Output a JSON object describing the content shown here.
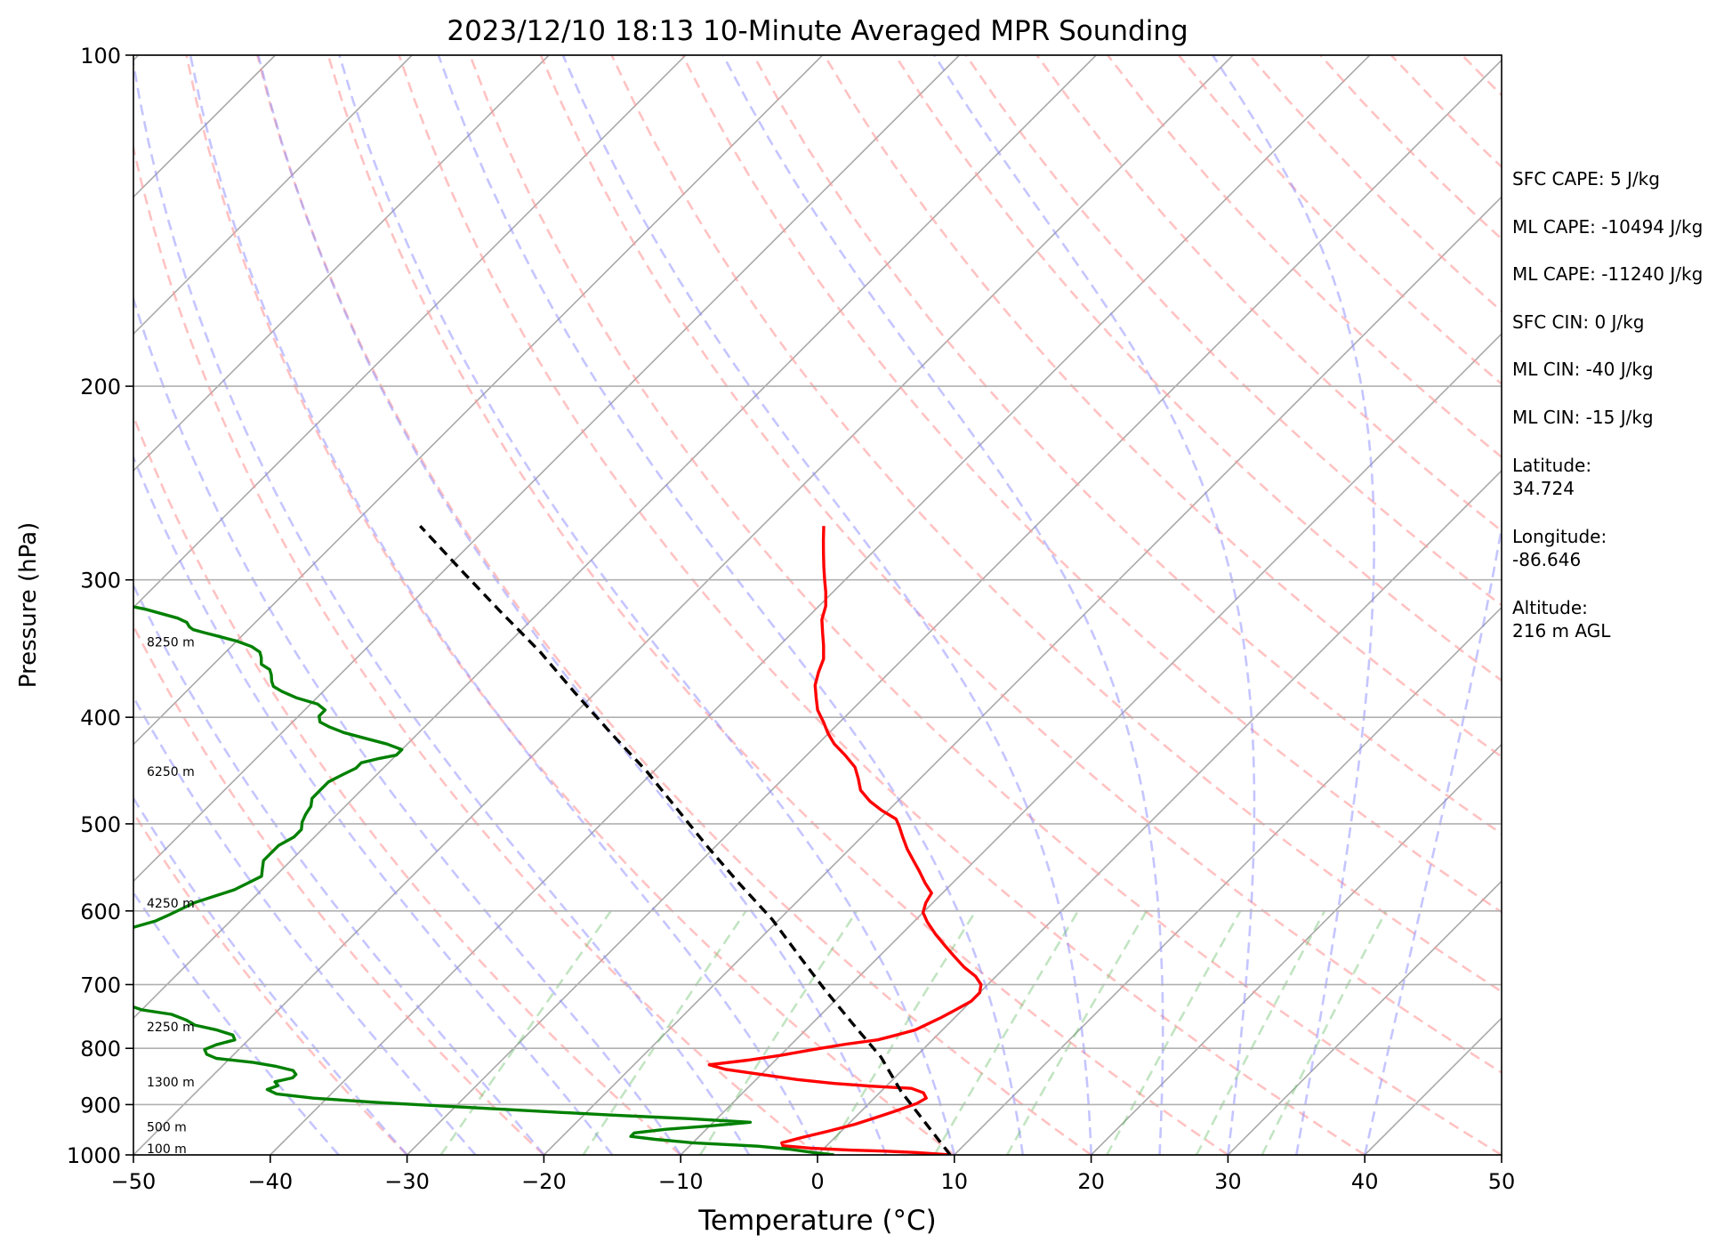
{
  "chart_data": {
    "type": "skew-t",
    "title": "2023/12/10 18:13 10-Minute Averaged MPR Sounding",
    "xlabel": "Temperature (°C)",
    "ylabel": "Pressure (hPa)",
    "xlim": [
      -50,
      50
    ],
    "ylim": [
      1000,
      100
    ],
    "y_scale": "log",
    "x_ticks": [
      "−50",
      "−40",
      "−30",
      "−20",
      "−10",
      "0",
      "10",
      "20",
      "30",
      "40",
      "50"
    ],
    "x_tick_values": [
      -50,
      -40,
      -30,
      -20,
      -10,
      0,
      10,
      20,
      30,
      40,
      50
    ],
    "y_ticks": [
      "100",
      "200",
      "300",
      "400",
      "500",
      "600",
      "700",
      "800",
      "900",
      "1000"
    ],
    "y_tick_values": [
      100,
      200,
      300,
      400,
      500,
      600,
      700,
      800,
      900,
      1000
    ],
    "grid": true,
    "height_labels": [
      {
        "text": "100 m",
        "p": 1000
      },
      {
        "text": "500 m",
        "p": 955
      },
      {
        "text": "1300 m",
        "p": 870
      },
      {
        "text": "2250 m",
        "p": 775
      },
      {
        "text": "4250 m",
        "p": 598
      },
      {
        "text": "6250 m",
        "p": 454
      },
      {
        "text": "8250 m",
        "p": 346
      }
    ],
    "series": [
      {
        "color": "#ff0000",
        "points": [
          [
            9.7,
            1000
          ],
          [
            7,
            995
          ],
          [
            4.5,
            992
          ],
          [
            2,
            990
          ],
          [
            -1,
            986
          ],
          [
            -3.2,
            981
          ],
          [
            -3.5,
            975
          ],
          [
            -2.5,
            965
          ],
          [
            -1,
            952
          ],
          [
            0.5,
            938
          ],
          [
            1.5,
            925
          ],
          [
            2.5,
            912
          ],
          [
            3.5,
            898
          ],
          [
            3.8,
            888
          ],
          [
            3.2,
            878
          ],
          [
            2,
            870
          ],
          [
            -1,
            866
          ],
          [
            -4,
            861
          ],
          [
            -7,
            854
          ],
          [
            -10,
            845
          ],
          [
            -13,
            836
          ],
          [
            -14.5,
            828
          ],
          [
            -12,
            820
          ],
          [
            -10,
            812
          ],
          [
            -8,
            802
          ],
          [
            -6,
            793
          ],
          [
            -4,
            786
          ],
          [
            -3,
            778
          ],
          [
            -2,
            770
          ],
          [
            -1.5,
            760
          ],
          [
            -1,
            750
          ],
          [
            -0.5,
            738
          ],
          [
            0,
            725
          ],
          [
            0,
            712
          ],
          [
            -0.5,
            700
          ],
          [
            -1.5,
            688
          ],
          [
            -3,
            675
          ],
          [
            -4.5,
            660
          ],
          [
            -6,
            645
          ],
          [
            -7.5,
            630
          ],
          [
            -9,
            614
          ],
          [
            -10,
            602
          ],
          [
            -10.5,
            590
          ],
          [
            -10.8,
            578
          ],
          [
            -12,
            566
          ],
          [
            -13.3,
            552
          ],
          [
            -14.5,
            540
          ],
          [
            -15.8,
            527
          ],
          [
            -17,
            514
          ],
          [
            -18,
            503
          ],
          [
            -18.8,
            495
          ],
          [
            -20.5,
            486
          ],
          [
            -22,
            477
          ],
          [
            -23.5,
            466
          ],
          [
            -24.5,
            455
          ],
          [
            -25.6,
            444
          ],
          [
            -27.2,
            433
          ],
          [
            -28.8,
            423
          ],
          [
            -30,
            414
          ],
          [
            -31.2,
            404
          ],
          [
            -32.5,
            394
          ],
          [
            -33.5,
            384
          ],
          [
            -34.5,
            374
          ],
          [
            -35.2,
            364
          ],
          [
            -35.8,
            354
          ],
          [
            -36.8,
            344
          ],
          [
            -37.8,
            335
          ],
          [
            -38.8,
            326
          ],
          [
            -39.5,
            317
          ],
          [
            -40.5,
            308
          ],
          [
            -41.5,
            300
          ],
          [
            -42.5,
            292
          ],
          [
            -43.5,
            284
          ],
          [
            -44.5,
            276
          ],
          [
            -45.5,
            268
          ]
        ]
      },
      {
        "color": "#008000",
        "points": [
          [
            1.2,
            1000
          ],
          [
            -0.5,
            995
          ],
          [
            -2.5,
            988
          ],
          [
            -5,
            982
          ],
          [
            -10,
            975
          ],
          [
            -13,
            968
          ],
          [
            -15,
            962
          ],
          [
            -15,
            955
          ],
          [
            -13,
            948
          ],
          [
            -10,
            941
          ],
          [
            -7.3,
            934
          ],
          [
            -12,
            927
          ],
          [
            -18,
            920
          ],
          [
            -24,
            912
          ],
          [
            -30,
            904
          ],
          [
            -36,
            896
          ],
          [
            -41,
            888
          ],
          [
            -44,
            880
          ],
          [
            -45,
            872
          ],
          [
            -44.5,
            865
          ],
          [
            -45,
            858
          ],
          [
            -44,
            851
          ],
          [
            -44,
            845
          ],
          [
            -44.5,
            838
          ],
          [
            -46,
            831
          ],
          [
            -48,
            824
          ],
          [
            -51,
            817
          ],
          [
            -52,
            810
          ],
          [
            -52.5,
            802
          ],
          [
            -52,
            794
          ],
          [
            -51,
            786
          ],
          [
            -51.5,
            778
          ],
          [
            -53,
            770
          ],
          [
            -55,
            762
          ],
          [
            -56,
            754
          ],
          [
            -57.5,
            745
          ],
          [
            -60,
            738
          ],
          [
            -61.5,
            730
          ],
          [
            -62,
            722
          ],
          [
            -62.5,
            714
          ],
          [
            -63,
            706
          ],
          [
            -66,
            698
          ],
          [
            -70,
            690
          ],
          [
            -72,
            682
          ],
          [
            -71.5,
            674
          ],
          [
            -72,
            666
          ],
          [
            -71,
            658
          ],
          [
            -70,
            650
          ],
          [
            -69.5,
            642
          ],
          [
            -69,
            634
          ],
          [
            -67.5,
            627
          ],
          [
            -66.5,
            620
          ],
          [
            -65.5,
            613
          ],
          [
            -65,
            606
          ],
          [
            -64.5,
            598
          ],
          [
            -64,
            590
          ],
          [
            -63,
            582
          ],
          [
            -62,
            574
          ],
          [
            -61.5,
            566
          ],
          [
            -61,
            558
          ],
          [
            -61.5,
            549
          ],
          [
            -62,
            540
          ],
          [
            -62,
            531
          ],
          [
            -62,
            523
          ],
          [
            -61.5,
            514
          ],
          [
            -61.5,
            506
          ],
          [
            -62,
            498
          ],
          [
            -62.3,
            490
          ],
          [
            -62.5,
            482
          ],
          [
            -63,
            474
          ],
          [
            -63,
            466
          ],
          [
            -63,
            458
          ],
          [
            -62.5,
            451
          ],
          [
            -62,
            445
          ],
          [
            -62,
            440
          ],
          [
            -61,
            436
          ],
          [
            -60,
            433
          ],
          [
            -60,
            428
          ],
          [
            -61.5,
            423
          ],
          [
            -63.5,
            418
          ],
          [
            -65.5,
            413
          ],
          [
            -67,
            408
          ],
          [
            -68,
            404
          ],
          [
            -68.5,
            399
          ],
          [
            -68.5,
            394
          ],
          [
            -69.5,
            389
          ],
          [
            -71.5,
            384
          ],
          [
            -73,
            379
          ],
          [
            -74,
            375
          ],
          [
            -74.5,
            371
          ],
          [
            -75,
            366
          ],
          [
            -75.5,
            362
          ],
          [
            -76.5,
            358
          ],
          [
            -77,
            353
          ],
          [
            -77.5,
            349
          ],
          [
            -78.5,
            345
          ],
          [
            -80,
            341
          ],
          [
            -81.5,
            338
          ],
          [
            -83,
            335
          ],
          [
            -84,
            333
          ],
          [
            -84.5,
            331
          ],
          [
            -85,
            328
          ],
          [
            -86,
            325
          ],
          [
            -87.5,
            322
          ],
          [
            -89,
            319
          ],
          [
            -91,
            316
          ],
          [
            -93,
            313
          ],
          [
            -95.5,
            310
          ],
          [
            -98.5,
            307
          ],
          [
            -100,
            304
          ],
          [
            -101.5,
            301
          ],
          [
            -102.5,
            299
          ],
          [
            -112,
            298
          ],
          [
            -122,
            297
          ]
        ]
      },
      {
        "color": "#000000",
        "dashed": true,
        "points": [
          [
            9.7,
            1000
          ],
          [
            1.5,
            876
          ],
          [
            -2.5,
            815
          ],
          [
            -7,
            760
          ],
          [
            -11.5,
            708
          ],
          [
            -16,
            658
          ],
          [
            -20.5,
            611
          ],
          [
            -25.5,
            567
          ],
          [
            -30.5,
            525
          ],
          [
            -35.5,
            485
          ],
          [
            -40.5,
            448
          ],
          [
            -46,
            413
          ],
          [
            -51.5,
            380
          ],
          [
            -57,
            349
          ],
          [
            -63,
            320
          ],
          [
            -69,
            293
          ],
          [
            -75,
            268
          ]
        ]
      }
    ]
  },
  "parameters": [
    "SFC CAPE: 5 J/kg",
    "ML CAPE: -10494 J/kg",
    "ML CAPE: -11240 J/kg",
    "SFC CIN: 0 J/kg",
    "ML CIN: -40 J/kg",
    "ML CIN: -15 J/kg",
    "Latitude:",
    "34.724",
    "Longitude:",
    "-86.646",
    "Altitude:",
    "216 m AGL"
  ]
}
